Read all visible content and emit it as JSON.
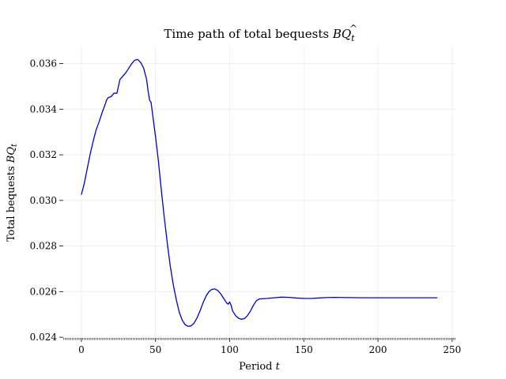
{
  "chart_data": {
    "type": "line",
    "title_main": "Time path of total bequests ",
    "title_math": "BQ",
    "title_sub": "t",
    "xlabel_main": "Period ",
    "xlabel_math": "t",
    "ylabel_main": "Total bequests ",
    "ylabel_math": "BQ",
    "ylabel_sub": "t",
    "xlim": [
      -12.2,
      252.2
    ],
    "ylim": [
      0.02397,
      0.03678
    ],
    "xticks": [
      0,
      50,
      100,
      150,
      200,
      250
    ],
    "xtick_labels": [
      "0",
      "50",
      "100",
      "150",
      "200",
      "250"
    ],
    "yticks": [
      0.024,
      0.026,
      0.028,
      0.03,
      0.032,
      0.034,
      0.036
    ],
    "ytick_labels": [
      "0.024",
      "0.026",
      "0.028",
      "0.030",
      "0.032",
      "0.034",
      "0.036"
    ],
    "grid": true,
    "minor_xticks_step": 1,
    "color": "#0000cc",
    "series": [
      {
        "points": [
          [
            0,
            0.03025
          ],
          [
            2,
            0.03075
          ],
          [
            4,
            0.0314
          ],
          [
            6,
            0.03205
          ],
          [
            8,
            0.0326
          ],
          [
            10,
            0.0331
          ],
          [
            12,
            0.03345
          ],
          [
            14,
            0.03385
          ],
          [
            16,
            0.0342
          ],
          [
            17,
            0.0344
          ],
          [
            18,
            0.0345
          ],
          [
            20,
            0.03455
          ],
          [
            22,
            0.0347
          ],
          [
            24,
            0.0347
          ],
          [
            25,
            0.035
          ],
          [
            26,
            0.0353
          ],
          [
            28,
            0.03545
          ],
          [
            30,
            0.0356
          ],
          [
            32,
            0.0358
          ],
          [
            34,
            0.036
          ],
          [
            36,
            0.03615
          ],
          [
            38,
            0.03618
          ],
          [
            40,
            0.03605
          ],
          [
            42,
            0.0358
          ],
          [
            44,
            0.0353
          ],
          [
            45,
            0.0348
          ],
          [
            46,
            0.0344
          ],
          [
            47,
            0.0343
          ],
          [
            48,
            0.0338
          ],
          [
            50,
            0.0328
          ],
          [
            52,
            0.0317
          ],
          [
            54,
            0.0304
          ],
          [
            56,
            0.0292
          ],
          [
            58,
            0.0281
          ],
          [
            60,
            0.0271
          ],
          [
            62,
            0.0263
          ],
          [
            64,
            0.02565
          ],
          [
            66,
            0.0251
          ],
          [
            68,
            0.02475
          ],
          [
            70,
            0.02455
          ],
          [
            72,
            0.02448
          ],
          [
            74,
            0.0245
          ],
          [
            76,
            0.02462
          ],
          [
            78,
            0.02485
          ],
          [
            80,
            0.02515
          ],
          [
            82,
            0.0255
          ],
          [
            84,
            0.0258
          ],
          [
            86,
            0.026
          ],
          [
            88,
            0.0261
          ],
          [
            90,
            0.02612
          ],
          [
            92,
            0.02605
          ],
          [
            94,
            0.0259
          ],
          [
            96,
            0.0257
          ],
          [
            98,
            0.0255
          ],
          [
            99,
            0.02545
          ],
          [
            100,
            0.02555
          ],
          [
            101,
            0.0254
          ],
          [
            102,
            0.02515
          ],
          [
            104,
            0.02495
          ],
          [
            106,
            0.02483
          ],
          [
            108,
            0.02479
          ],
          [
            110,
            0.02482
          ],
          [
            112,
            0.02495
          ],
          [
            114,
            0.02515
          ],
          [
            116,
            0.0254
          ],
          [
            118,
            0.0256
          ],
          [
            120,
            0.02568
          ],
          [
            125,
            0.0257
          ],
          [
            130,
            0.02573
          ],
          [
            135,
            0.02576
          ],
          [
            140,
            0.02575
          ],
          [
            145,
            0.02572
          ],
          [
            150,
            0.0257
          ],
          [
            155,
            0.0257
          ],
          [
            160,
            0.02572
          ],
          [
            165,
            0.02574
          ],
          [
            170,
            0.02575
          ],
          [
            180,
            0.02574
          ],
          [
            190,
            0.02573
          ],
          [
            200,
            0.02573
          ],
          [
            210,
            0.02573
          ],
          [
            220,
            0.02573
          ],
          [
            230,
            0.02573
          ],
          [
            240,
            0.02573
          ]
        ]
      }
    ]
  }
}
